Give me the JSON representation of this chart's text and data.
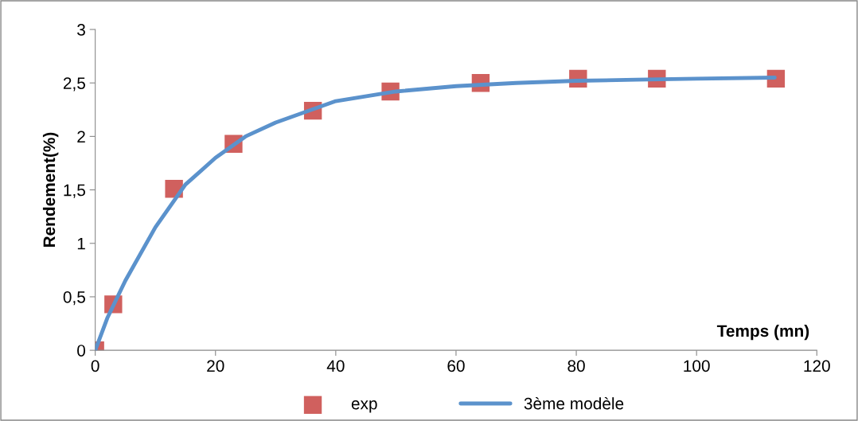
{
  "chart_data": {
    "type": "scatter",
    "xlabel": "Temps (mn)",
    "ylabel": "Rendement(%)",
    "xlim": [
      0,
      120
    ],
    "xticks": [
      0,
      20,
      40,
      60,
      80,
      100,
      120
    ],
    "ylim": [
      0,
      3
    ],
    "yticks": [
      0,
      {
        "value": 0.5,
        "label": "0,5"
      },
      1,
      {
        "value": 1.5,
        "label": "1,5"
      },
      2,
      {
        "value": 2.5,
        "label": "2,5"
      },
      3
    ],
    "grid": false,
    "legend": "bottom",
    "series": [
      {
        "name": "exp",
        "marker": "square",
        "color": "#d0605e",
        "x": [
          0,
          3,
          13.1,
          23,
          36.2,
          49.1,
          64.1,
          80.3,
          93.4,
          113.2
        ],
        "values": [
          0,
          0.43,
          1.51,
          1.93,
          2.24,
          2.42,
          2.5,
          2.54,
          2.54,
          2.54
        ]
      },
      {
        "name": "3ème modèle",
        "type": "line",
        "marker": "none",
        "line_style": "solid",
        "color": "#5b92cc",
        "x": [
          0,
          2,
          5,
          10,
          15,
          20,
          25,
          30,
          40,
          50,
          60,
          70,
          80,
          90,
          100,
          113
        ],
        "values": [
          0,
          0.3,
          0.65,
          1.15,
          1.55,
          1.8,
          2.0,
          2.13,
          2.33,
          2.42,
          2.47,
          2.5,
          2.52,
          2.53,
          2.54,
          2.55
        ]
      }
    ]
  }
}
